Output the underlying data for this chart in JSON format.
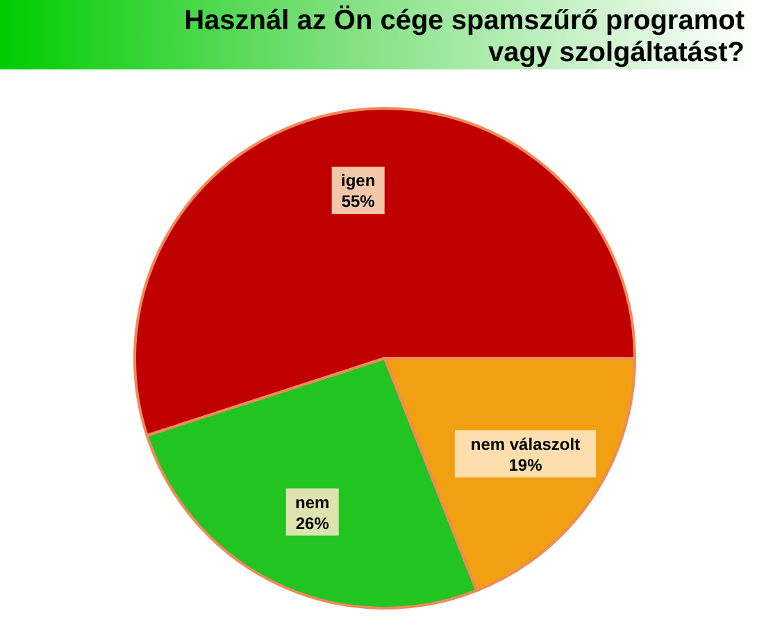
{
  "chart_data": {
    "type": "pie",
    "title": "Használ az Ön cége spamszűrő programot vagy szolgáltatást?",
    "categories": [
      "igen",
      "nem",
      "nem válaszolt"
    ],
    "values": [
      55,
      26,
      19
    ],
    "colors": [
      "#c00000",
      "#22c422",
      "#f0a010"
    ],
    "value_labels": [
      "55%",
      "26%",
      "19%"
    ]
  }
}
